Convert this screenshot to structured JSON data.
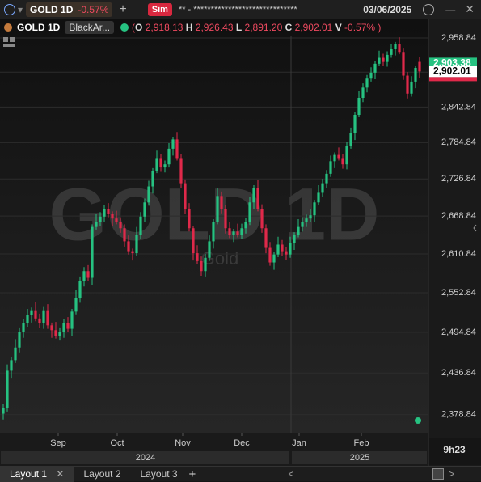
{
  "toolbar": {
    "instrument": "GOLD 1D",
    "change": "-0.57%",
    "sim": "Sim",
    "account": "** - ******************************",
    "date": "03/06/2025"
  },
  "chart_header": {
    "instrument": "GOLD 1D",
    "template": "BlackAr...",
    "open_paren": "(",
    "o_label": "O",
    "o": "2,918.13",
    "h_label": "H",
    "h": "2,926.43",
    "l_label": "L",
    "l": "2,891.20",
    "c_label": "C",
    "c": "2,902.01",
    "v_label": "V",
    "v": "-0.57%",
    "close_paren": ")"
  },
  "chart_data": {
    "type": "candlestick",
    "title": "GOLD 1D",
    "subtitle": "Gold",
    "up_color": "#26c281",
    "down_color": "#e0294a",
    "log_scale": true,
    "grid": true,
    "open": [
      2380,
      2388,
      2440,
      2455,
      2473,
      2495,
      2508,
      2520,
      2527,
      2515,
      2508,
      2527,
      2505,
      2498,
      2490,
      2495,
      2508,
      2500,
      2525,
      2545,
      2570,
      2585,
      2575,
      2652,
      2660,
      2668,
      2680,
      2672,
      2665,
      2660,
      2650,
      2630,
      2615,
      2612,
      2640,
      2668,
      2690,
      2715,
      2740,
      2760,
      2745,
      2750,
      2775,
      2790,
      2760,
      2720,
      2680,
      2650,
      2612,
      2600,
      2585,
      2605,
      2630,
      2660,
      2700,
      2680,
      2650,
      2640,
      2645,
      2640,
      2650,
      2660,
      2690,
      2713,
      2680,
      2650,
      2620,
      2598,
      2610,
      2625,
      2615,
      2610,
      2628,
      2640,
      2652,
      2660,
      2665,
      2670,
      2690,
      2705,
      2720,
      2735,
      2755,
      2765,
      2760,
      2750,
      2780,
      2800,
      2830,
      2858,
      2875,
      2890,
      2900,
      2915,
      2925,
      2918,
      2930,
      2940,
      2948,
      2935,
      2895,
      2865,
      2885,
      2918.13
    ],
    "high": [
      2394,
      2449,
      2459,
      2485,
      2502,
      2514,
      2529,
      2531,
      2539,
      2522,
      2533,
      2536,
      2509,
      2510,
      2502,
      2514,
      2517,
      2529,
      2557,
      2577,
      2591,
      2594,
      2656,
      2672,
      2675,
      2686,
      2689,
      2676,
      2677,
      2667,
      2656,
      2639,
      2619,
      2652,
      2675,
      2696,
      2724,
      2744,
      2772,
      2767,
      2756,
      2784,
      2794,
      2802,
      2767,
      2726,
      2689,
      2654,
      2624,
      2607,
      2611,
      2639,
      2664,
      2712,
      2707,
      2686,
      2659,
      2649,
      2657,
      2657,
      2666,
      2699,
      2717,
      2725,
      2687,
      2656,
      2629,
      2614,
      2637,
      2632,
      2621,
      2637,
      2644,
      2664,
      2667,
      2671,
      2679,
      2694,
      2717,
      2727,
      2741,
      2764,
      2769,
      2777,
      2767,
      2786,
      2809,
      2834,
      2870,
      2882,
      2896,
      2909,
      2919,
      2937,
      2932,
      2936,
      2949,
      2952,
      2960,
      2942,
      2901,
      2894,
      2912,
      2926.43
    ],
    "low": [
      2372,
      2383,
      2429,
      2451,
      2466,
      2487,
      2503,
      2509,
      2511,
      2501,
      2500,
      2500,
      2487,
      2486,
      2483,
      2487,
      2495,
      2489,
      2521,
      2538,
      2562,
      2570,
      2564,
      2648,
      2653,
      2660,
      2667,
      2654,
      2656,
      2643,
      2622,
      2610,
      2601,
      2608,
      2633,
      2660,
      2685,
      2704,
      2736,
      2738,
      2737,
      2745,
      2764,
      2756,
      2713,
      2672,
      2645,
      2601,
      2596,
      2578,
      2577,
      2600,
      2619,
      2656,
      2673,
      2642,
      2635,
      2629,
      2636,
      2633,
      2642,
      2655,
      2679,
      2676,
      2643,
      2612,
      2593,
      2587,
      2606,
      2608,
      2602,
      2605,
      2617,
      2636,
      2645,
      2652,
      2660,
      2659,
      2686,
      2698,
      2712,
      2730,
      2744,
      2756,
      2743,
      2742,
      2775,
      2789,
      2826,
      2851,
      2867,
      2885,
      2889,
      2911,
      2911,
      2910,
      2925,
      2929,
      2931,
      2888,
      2857,
      2860,
      2874,
      2891.2
    ],
    "close": [
      2388,
      2440,
      2455,
      2473,
      2495,
      2508,
      2520,
      2527,
      2515,
      2508,
      2527,
      2505,
      2498,
      2490,
      2495,
      2508,
      2500,
      2525,
      2545,
      2570,
      2585,
      2575,
      2652,
      2660,
      2668,
      2680,
      2672,
      2665,
      2660,
      2650,
      2630,
      2615,
      2612,
      2640,
      2668,
      2690,
      2715,
      2740,
      2760,
      2745,
      2750,
      2775,
      2790,
      2760,
      2720,
      2680,
      2650,
      2612,
      2600,
      2585,
      2605,
      2630,
      2660,
      2700,
      2680,
      2650,
      2640,
      2645,
      2640,
      2650,
      2660,
      2690,
      2713,
      2680,
      2650,
      2620,
      2598,
      2610,
      2625,
      2615,
      2610,
      2628,
      2640,
      2652,
      2660,
      2665,
      2670,
      2690,
      2705,
      2720,
      2735,
      2755,
      2765,
      2760,
      2750,
      2780,
      2800,
      2830,
      2858,
      2875,
      2890,
      2900,
      2915,
      2925,
      2918,
      2930,
      2940,
      2948,
      2935,
      2895,
      2865,
      2885,
      2908,
      2902.01
    ],
    "xlim": [
      -0.8,
      105.2
    ],
    "xticks": [
      {
        "value": 13.6,
        "label": "Sep"
      },
      {
        "value": 28.2,
        "label": "Oct"
      },
      {
        "value": 44.4,
        "label": "Nov"
      },
      {
        "value": 59,
        "label": "Dec"
      },
      {
        "value": 73.2,
        "label": "Jan"
      },
      {
        "value": 88.6,
        "label": "Feb"
      }
    ],
    "years": [
      {
        "value": -0.8,
        "label": "2024"
      },
      {
        "value": 71.2,
        "label": "2025"
      }
    ],
    "ylim": [
      2354,
      2963
    ],
    "yticks": [
      {
        "value": 2958.84,
        "label": "2,958.84"
      },
      {
        "value": 2900.84,
        "label": "2,900.84"
      },
      {
        "value": 2842.84,
        "label": "2,842.84"
      },
      {
        "value": 2784.84,
        "label": "2,784.84"
      },
      {
        "value": 2726.84,
        "label": "2,726.84"
      },
      {
        "value": 2668.84,
        "label": "2,668.84"
      },
      {
        "value": 2610.84,
        "label": "2,610.84"
      },
      {
        "value": 2552.84,
        "label": "2,552.84"
      },
      {
        "value": 2494.84,
        "label": "2,494.84"
      },
      {
        "value": 2436.84,
        "label": "2,436.84"
      },
      {
        "value": 2378.84,
        "label": "2,378.84"
      }
    ],
    "price_labels": [
      {
        "value": 2903.38,
        "label": "2,903.38",
        "color": "#26c281"
      },
      {
        "value": 2902.01,
        "label": "2,902.01",
        "color": "#ffffff"
      }
    ],
    "time_to_close": "9h23"
  },
  "layouts": [
    "Layout 1",
    "Layout 2",
    "Layout 3"
  ]
}
